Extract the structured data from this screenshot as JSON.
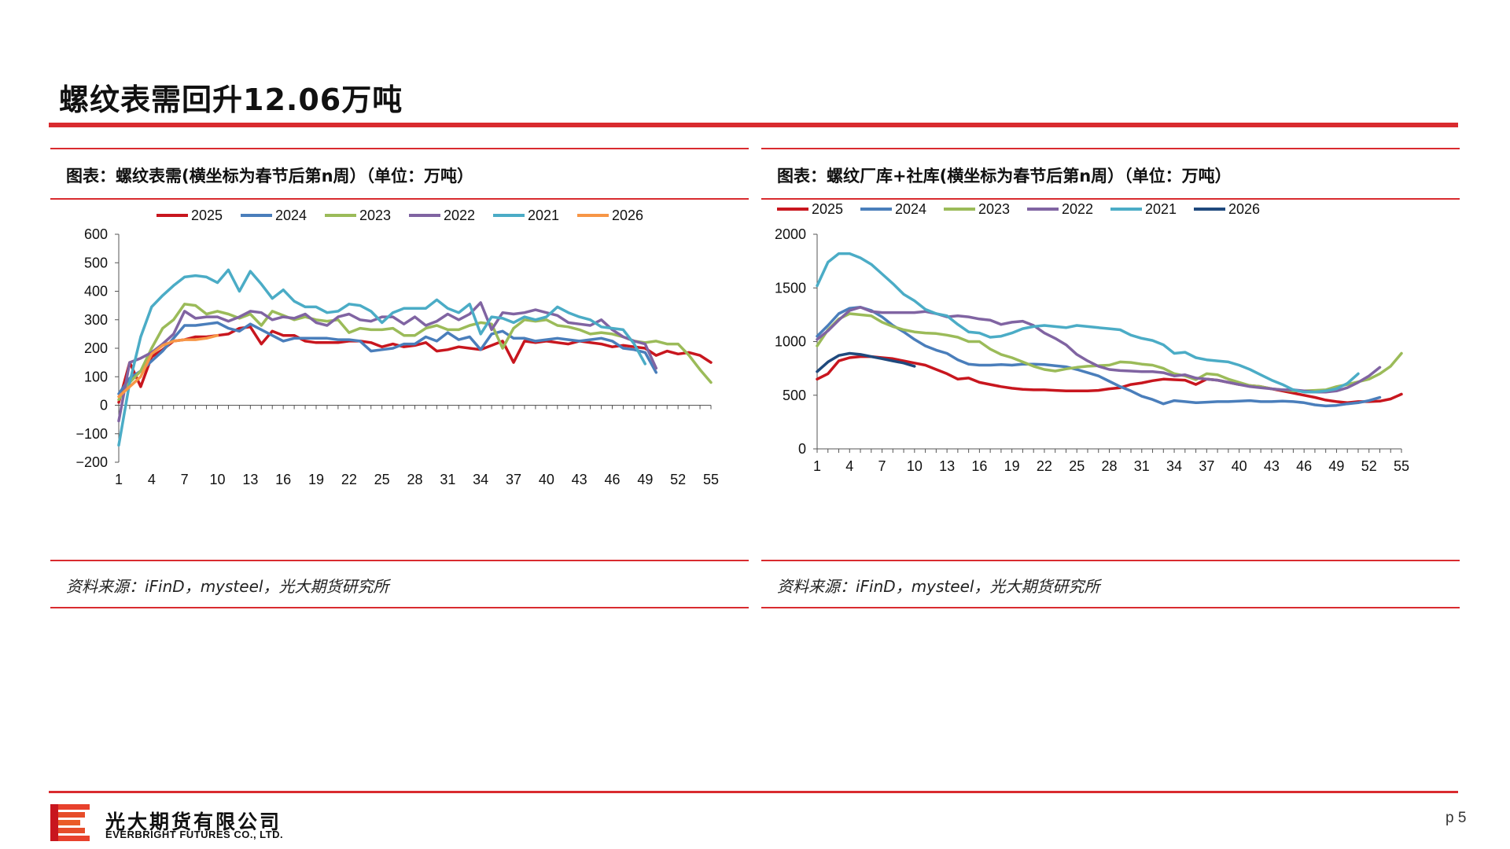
{
  "page": {
    "title": "螺纹表需回升12.06万吨",
    "page_number": "p 5"
  },
  "footer": {
    "company_cn": "光大期货有限公司",
    "company_en": "EVERBRIGHT FUTURES CO., LTD."
  },
  "colors": {
    "accent": "#d92b2f",
    "2025": "#c8161e",
    "2024": "#4a7ebb",
    "2023": "#9bbb59",
    "2022": "#8064a2",
    "2021": "#4bacc6",
    "2026_left": "#f79646",
    "2026_right": "#1f497d"
  },
  "chart_data": [
    {
      "type": "line",
      "panel_title": "图表：螺纹表需(横坐标为春节后第n周）（单位：万吨）",
      "source": "资料来源：iFinD，mysteel，光大期货研究所",
      "xlabel": "",
      "ylabel": "",
      "xlim": [
        1,
        55
      ],
      "ylim": [
        -200,
        600
      ],
      "xticks": [
        "1",
        "4",
        "7",
        "10",
        "13",
        "16",
        "19",
        "22",
        "25",
        "28",
        "31",
        "34",
        "37",
        "40",
        "43",
        "46",
        "49",
        "52",
        "55"
      ],
      "yticks": [
        "600",
        "500",
        "400",
        "300",
        "200",
        "100",
        "0",
        "−100",
        "−200"
      ],
      "legend_position": "top",
      "series": [
        {
          "name": "2025",
          "color": "#c8161e",
          "x_start": 1,
          "values": [
            10,
            150,
            65,
            170,
            195,
            225,
            230,
            240,
            240,
            245,
            250,
            270,
            275,
            215,
            260,
            245,
            245,
            225,
            220,
            220,
            220,
            225,
            225,
            220,
            205,
            215,
            205,
            210,
            220,
            190,
            195,
            205,
            200,
            195,
            210,
            225,
            150,
            225,
            220,
            225,
            220,
            215,
            225,
            220,
            215,
            205,
            210,
            205,
            200,
            175,
            190,
            180,
            185,
            175,
            150
          ]
        },
        {
          "name": "2024",
          "color": "#4a7ebb",
          "x_start": 1,
          "values": [
            40,
            95,
            120,
            155,
            190,
            235,
            280,
            280,
            285,
            290,
            270,
            260,
            285,
            265,
            245,
            225,
            235,
            235,
            235,
            235,
            230,
            230,
            225,
            190,
            195,
            200,
            215,
            215,
            240,
            225,
            255,
            230,
            240,
            195,
            250,
            260,
            235,
            235,
            225,
            230,
            235,
            230,
            225,
            230,
            235,
            225,
            200,
            195,
            185,
            115
          ]
        },
        {
          "name": "2023",
          "color": "#9bbb59",
          "x_start": 1,
          "values": [
            20,
            80,
            120,
            200,
            270,
            300,
            355,
            350,
            320,
            330,
            320,
            305,
            320,
            280,
            330,
            315,
            300,
            310,
            300,
            295,
            300,
            255,
            270,
            265,
            265,
            270,
            245,
            245,
            270,
            280,
            265,
            265,
            280,
            290,
            285,
            200,
            270,
            300,
            295,
            300,
            280,
            275,
            265,
            250,
            255,
            250,
            240,
            225,
            220,
            225,
            215,
            215,
            175,
            125,
            80
          ]
        },
        {
          "name": "2022",
          "color": "#8064a2",
          "x_start": 1,
          "values": [
            -55,
            150,
            165,
            185,
            215,
            250,
            330,
            305,
            310,
            310,
            295,
            310,
            330,
            325,
            300,
            310,
            305,
            320,
            290,
            280,
            310,
            320,
            300,
            295,
            310,
            310,
            285,
            310,
            280,
            295,
            320,
            300,
            320,
            360,
            265,
            325,
            320,
            325,
            335,
            325,
            315,
            290,
            285,
            280,
            300,
            265,
            240,
            225,
            215,
            130
          ]
        },
        {
          "name": "2021",
          "color": "#4bacc6",
          "x_start": 1,
          "values": [
            -140,
            80,
            240,
            345,
            385,
            420,
            450,
            455,
            450,
            430,
            475,
            400,
            470,
            425,
            375,
            405,
            365,
            345,
            345,
            325,
            330,
            355,
            350,
            330,
            290,
            325,
            340,
            340,
            340,
            370,
            340,
            325,
            355,
            250,
            310,
            305,
            290,
            310,
            300,
            310,
            345,
            325,
            310,
            300,
            275,
            270,
            265,
            215,
            145
          ]
        },
        {
          "name": "2026",
          "color": "#f79646",
          "x_start": 1,
          "values": [
            30,
            65,
            100,
            180,
            210,
            225,
            230,
            230,
            235,
            245
          ]
        }
      ]
    },
    {
      "type": "line",
      "panel_title": "图表：螺纹厂库+社库(横坐标为春节后第n周）（单位：万吨）",
      "source": "资料来源：iFinD，mysteel，光大期货研究所",
      "xlabel": "",
      "ylabel": "",
      "xlim": [
        1,
        55
      ],
      "ylim": [
        0,
        2000
      ],
      "xticks": [
        "1",
        "4",
        "7",
        "10",
        "13",
        "16",
        "19",
        "22",
        "25",
        "28",
        "31",
        "34",
        "37",
        "40",
        "43",
        "46",
        "49",
        "52",
        "55"
      ],
      "yticks": [
        "2000",
        "1500",
        "1000",
        "500",
        "0"
      ],
      "legend_position": "top",
      "series": [
        {
          "name": "2025",
          "color": "#c8161e",
          "x_start": 1,
          "values": [
            650,
            700,
            820,
            850,
            860,
            860,
            850,
            840,
            820,
            800,
            780,
            740,
            700,
            650,
            660,
            620,
            600,
            580,
            565,
            555,
            550,
            550,
            545,
            540,
            540,
            540,
            545,
            560,
            570,
            600,
            615,
            635,
            650,
            645,
            640,
            600,
            650,
            640,
            620,
            600,
            590,
            580,
            560,
            540,
            520,
            500,
            480,
            455,
            440,
            430,
            440,
            440,
            445,
            465,
            510
          ]
        },
        {
          "name": "2024",
          "color": "#4a7ebb",
          "x_start": 1,
          "values": [
            1050,
            1150,
            1260,
            1310,
            1320,
            1290,
            1230,
            1150,
            1090,
            1020,
            960,
            920,
            890,
            830,
            790,
            780,
            780,
            785,
            780,
            790,
            790,
            785,
            775,
            765,
            740,
            710,
            680,
            630,
            580,
            540,
            490,
            460,
            420,
            450,
            440,
            430,
            435,
            440,
            440,
            445,
            450,
            440,
            440,
            445,
            440,
            430,
            410,
            400,
            405,
            420,
            430,
            450,
            480
          ]
        },
        {
          "name": "2023",
          "color": "#9bbb59",
          "x_start": 1,
          "values": [
            960,
            1110,
            1210,
            1260,
            1250,
            1240,
            1180,
            1140,
            1110,
            1090,
            1080,
            1075,
            1060,
            1040,
            1000,
            1000,
            930,
            880,
            850,
            810,
            770,
            740,
            725,
            745,
            760,
            770,
            775,
            780,
            810,
            805,
            790,
            780,
            750,
            700,
            680,
            645,
            700,
            690,
            650,
            620,
            590,
            580,
            560,
            550,
            540,
            540,
            545,
            550,
            580,
            600,
            625,
            650,
            700,
            770,
            890
          ]
        },
        {
          "name": "2022",
          "color": "#8064a2",
          "x_start": 1,
          "values": [
            1020,
            1100,
            1200,
            1290,
            1320,
            1280,
            1270,
            1270,
            1270,
            1270,
            1280,
            1260,
            1230,
            1240,
            1230,
            1210,
            1200,
            1160,
            1180,
            1190,
            1150,
            1080,
            1030,
            970,
            880,
            820,
            770,
            740,
            730,
            725,
            720,
            720,
            710,
            680,
            690,
            660,
            650,
            640,
            620,
            600,
            580,
            570,
            560,
            550,
            550,
            540,
            530,
            530,
            540,
            570,
            620,
            680,
            760
          ]
        },
        {
          "name": "2021",
          "color": "#4bacc6",
          "x_start": 1,
          "values": [
            1520,
            1740,
            1820,
            1820,
            1780,
            1720,
            1630,
            1540,
            1440,
            1380,
            1300,
            1260,
            1240,
            1160,
            1090,
            1080,
            1040,
            1050,
            1080,
            1120,
            1140,
            1150,
            1140,
            1130,
            1150,
            1140,
            1130,
            1120,
            1110,
            1060,
            1030,
            1010,
            970,
            890,
            900,
            850,
            830,
            820,
            810,
            780,
            740,
            690,
            640,
            600,
            550,
            530,
            530,
            540,
            560,
            610,
            700
          ]
        },
        {
          "name": "2026",
          "color": "#1f497d",
          "x_start": 1,
          "values": [
            720,
            810,
            870,
            890,
            880,
            860,
            840,
            820,
            800,
            770
          ]
        }
      ]
    }
  ]
}
